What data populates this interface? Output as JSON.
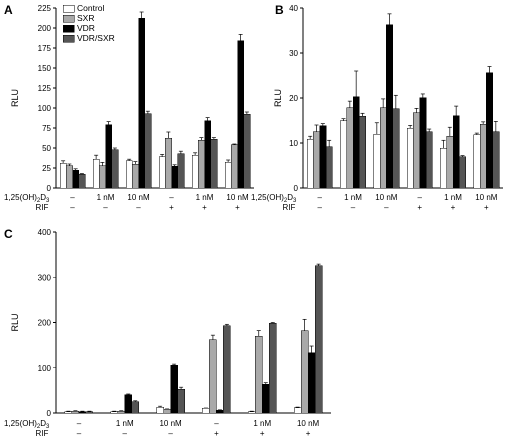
{
  "colors": {
    "Control": "#ffffff",
    "SXR": "#a9a9a9",
    "VDR": "#000000",
    "VDR/SXR": "#555555"
  },
  "legend": [
    "Control",
    "SXR",
    "VDR",
    "VDR/SXR"
  ],
  "row_labels": {
    "d3": "1,25(OH)",
    "d3_sub": "2",
    "d3_suffix": "D",
    "d3_sub2": "3",
    "rif": "RIF"
  },
  "groups": [
    {
      "d3": "–",
      "rif": "–"
    },
    {
      "d3": "1 nM",
      "rif": "–"
    },
    {
      "d3": "10 nM",
      "rif": "–"
    },
    {
      "d3": "–",
      "rif": "+"
    },
    {
      "d3": "1 nM",
      "rif": "+"
    },
    {
      "d3": "10 nM",
      "rif": "+"
    }
  ],
  "chart_data": [
    {
      "panel": "A",
      "type": "bar",
      "ylabel": "RLU",
      "ylim": [
        0,
        225
      ],
      "yticks": [
        0,
        25,
        50,
        75,
        100,
        125,
        150,
        175,
        200,
        225
      ],
      "series": [
        {
          "name": "Control",
          "values": [
            31,
            36,
            34,
            39,
            41,
            32
          ],
          "err": [
            3,
            5,
            2,
            3,
            3,
            3
          ]
        },
        {
          "name": "SXR",
          "values": [
            28,
            28,
            30,
            62,
            60,
            54
          ],
          "err": [
            2,
            4,
            3,
            8,
            3,
            1
          ]
        },
        {
          "name": "VDR",
          "values": [
            22,
            79,
            212,
            27,
            84,
            184
          ],
          "err": [
            2,
            4,
            8,
            2,
            4,
            8
          ]
        },
        {
          "name": "VDR/SXR",
          "values": [
            17,
            48,
            93,
            43,
            61,
            92
          ],
          "err": [
            1,
            2,
            3,
            3,
            2,
            3
          ]
        }
      ]
    },
    {
      "panel": "B",
      "type": "bar",
      "ylabel": "RLU",
      "ylim": [
        0,
        40
      ],
      "yticks": [
        0,
        10,
        20,
        30,
        40
      ],
      "series": [
        {
          "name": "Control",
          "values": [
            10.8,
            15.0,
            12.0,
            13.3,
            8.8,
            11.8
          ],
          "err": [
            0.7,
            0.4,
            2.5,
            0.6,
            1.8,
            0.4
          ]
        },
        {
          "name": "SXR",
          "values": [
            12.5,
            17.8,
            17.8,
            16.7,
            11.5,
            14.2
          ],
          "err": [
            1.5,
            1.5,
            2.0,
            1.0,
            2.0,
            0.5
          ]
        },
        {
          "name": "VDR",
          "values": [
            13.8,
            20.3,
            36.3,
            20.1,
            16.1,
            25.6
          ],
          "err": [
            0.5,
            5.7,
            2.4,
            0.8,
            2.1,
            1.4
          ]
        },
        {
          "name": "VDR/SXR",
          "values": [
            9.2,
            16.0,
            17.6,
            12.5,
            7.0,
            12.5
          ],
          "err": [
            1.4,
            0.6,
            3.0,
            0.6,
            0.2,
            2.3
          ]
        }
      ]
    },
    {
      "panel": "C",
      "type": "bar",
      "ylabel": "RLU",
      "ylim": [
        0,
        400
      ],
      "yticks": [
        0,
        100,
        200,
        300,
        400
      ],
      "series": [
        {
          "name": "Control",
          "values": [
            3,
            3,
            13,
            10,
            3,
            12
          ],
          "err": [
            1,
            1,
            2,
            1,
            1,
            1
          ]
        },
        {
          "name": "SXR",
          "values": [
            4,
            4,
            8,
            162,
            170,
            182
          ],
          "err": [
            1,
            1,
            1,
            10,
            12,
            25
          ]
        },
        {
          "name": "VDR",
          "values": [
            3,
            40,
            105,
            6,
            64,
            133
          ],
          "err": [
            1,
            2,
            3,
            1,
            3,
            15
          ]
        },
        {
          "name": "VDR/SXR",
          "values": [
            3,
            25,
            52,
            193,
            198,
            325
          ],
          "err": [
            1,
            2,
            5,
            3,
            2,
            4
          ]
        }
      ]
    }
  ]
}
